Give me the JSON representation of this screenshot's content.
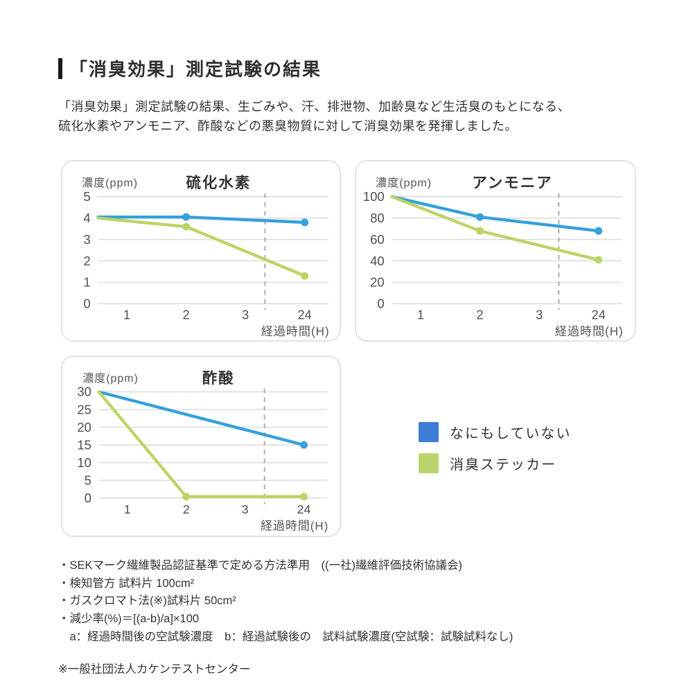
{
  "header": {
    "title": "「消臭効果」測定試験の結果"
  },
  "intro": {
    "text": "「消臭効果」測定試験の結果、生ごみや、汗、排泄物、加齢臭など生活臭のもとになる、\n硫化水素やアンモニア、酢酸などの悪臭物質に対して消臭効果を発揮しました。"
  },
  "colors": {
    "line_blue": "#34A0DC",
    "line_green": "#BCD465",
    "legend_blue": "#3C7DD7",
    "legend_green": "#BCD46E",
    "gridline": "#dcdcdc",
    "dashed_line": "#ababab",
    "axis_text": "#4e4e4e",
    "label_text": "#555555"
  },
  "legend": {
    "items": [
      {
        "label": "なにもしていない",
        "color": "#3C7DD7"
      },
      {
        "label": "消臭ステッカー",
        "color": "#BCD46E"
      }
    ]
  },
  "chart_data": [
    {
      "type": "line",
      "title": "硫化水素",
      "ylabel": "濃度(ppm)",
      "xlabel": "経過時間(H)",
      "ylim": [
        0,
        5
      ],
      "yticks": [
        0,
        1,
        2,
        3,
        4,
        5
      ],
      "xticklabels": [
        "1",
        "2",
        "3",
        "24"
      ],
      "dashed_x_fraction": 0.725,
      "grid": true,
      "series": [
        {
          "name": "なにもしていない",
          "color": "#34A0DC",
          "points": [
            {
              "x": "start",
              "v": 4.05
            },
            {
              "x": "2",
              "v": 4.05,
              "dot": true
            },
            {
              "x": "24",
              "v": 3.8,
              "dot": true
            }
          ]
        },
        {
          "name": "消臭ステッカー",
          "color": "#BCD465",
          "points": [
            {
              "x": "start",
              "v": 4.0
            },
            {
              "x": "2",
              "v": 3.6,
              "dot": true
            },
            {
              "x": "24",
              "v": 1.3,
              "dot": true
            }
          ]
        }
      ]
    },
    {
      "type": "line",
      "title": "アンモニア",
      "ylabel": "濃度(ppm)",
      "xlabel": "経過時間(H)",
      "ylim": [
        0,
        100
      ],
      "yticks": [
        0,
        20,
        40,
        60,
        80,
        100
      ],
      "xticklabels": [
        "1",
        "2",
        "3",
        "24"
      ],
      "dashed_x_fraction": 0.725,
      "grid": true,
      "series": [
        {
          "name": "なにもしていない",
          "color": "#34A0DC",
          "points": [
            {
              "x": "start",
              "v": 100
            },
            {
              "x": "2",
              "v": 81,
              "dot": true
            },
            {
              "x": "24",
              "v": 68,
              "dot": true
            }
          ]
        },
        {
          "name": "消臭ステッカー",
          "color": "#BCD465",
          "points": [
            {
              "x": "start",
              "v": 100
            },
            {
              "x": "2",
              "v": 68,
              "dot": true
            },
            {
              "x": "24",
              "v": 41,
              "dot": true
            }
          ]
        }
      ]
    },
    {
      "type": "line",
      "title": "酢酸",
      "ylabel": "濃度(ppm)",
      "xlabel": "経過時間(H)",
      "ylim": [
        0,
        30
      ],
      "yticks": [
        0,
        5,
        10,
        15,
        20,
        25,
        30
      ],
      "xticklabels": [
        "1",
        "2",
        "3",
        "24"
      ],
      "dashed_x_fraction": 0.725,
      "grid": true,
      "series": [
        {
          "name": "なにもしていない",
          "color": "#34A0DC",
          "points": [
            {
              "x": "start",
              "v": 30
            },
            {
              "x": "24",
              "v": 15,
              "dot": true
            }
          ]
        },
        {
          "name": "消臭ステッカー",
          "color": "#BCD465",
          "points": [
            {
              "x": "start",
              "v": 30
            },
            {
              "x": "2",
              "v": 0.4,
              "dot": true
            },
            {
              "x": "24",
              "v": 0.4,
              "dot": true
            }
          ]
        }
      ]
    }
  ],
  "footnotes": {
    "lines": [
      "・SEKマーク繊維製品認証基準で定める方法準用　((一社)繊維評価技術協議会)",
      "・検知管方 試料片 100cm²",
      "・ガスクロマト法(※)試料片 50cm²",
      "・減少率(%)＝[(a-b)/a]×100",
      "　a：経過時間後の空試験濃度　b：経過試験後の　試料試験濃度(空試験：試験試料なし)"
    ],
    "note": "※一般社団法人カケンテストセンター"
  }
}
